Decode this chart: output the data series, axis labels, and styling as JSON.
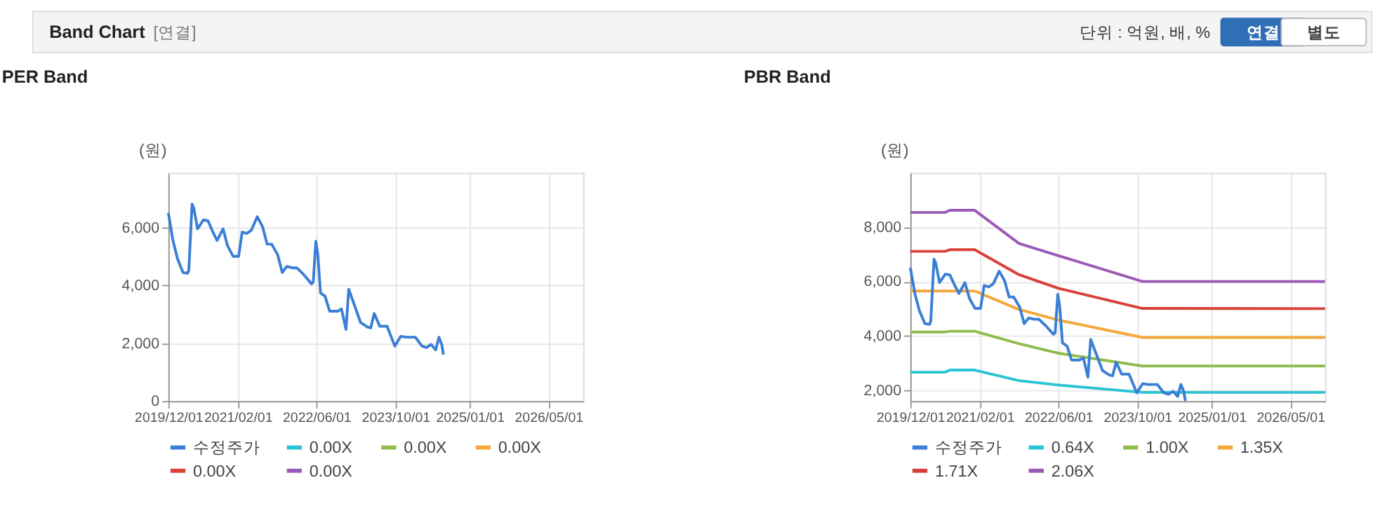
{
  "chart_data": [
    {
      "type": "line",
      "title": "PER Band",
      "ylabel": "(원)",
      "annotations": [
        "Band Chart",
        "[연결]",
        "단위 : 억원, 배, %",
        "연결",
        "별도"
      ],
      "xlim": [
        "2019-12-01",
        "2026-12-01"
      ],
      "xticks": [
        {
          "value": "2019-12-01",
          "label": "2019/12/01"
        },
        {
          "value": "2021-02-01",
          "label": "2021/02/01"
        },
        {
          "value": "2022-06-01",
          "label": "2022/06/01"
        },
        {
          "value": "2023-10-01",
          "label": "2023/10/01"
        },
        {
          "value": "2025-01-01",
          "label": "2025/01/01"
        },
        {
          "value": "2026-05-01",
          "label": "2026/05/01"
        }
      ],
      "ylim": [
        0,
        7900
      ],
      "yticks": [
        0,
        {
          "value": 2000,
          "label": "2,000"
        },
        {
          "value": 4000,
          "label": "4,000"
        },
        {
          "value": 6000,
          "label": "6,000"
        }
      ],
      "grid": true,
      "legend": "bottom",
      "marker": "none",
      "series": [
        {
          "name": "수정주가",
          "color": "#3a7fd5",
          "x": [
            "2019-12-01",
            "2019-12-29",
            "2020-01-26",
            "2020-02-29",
            "2020-03-28",
            "2020-04-05",
            "2020-04-25",
            "2020-05-06",
            "2020-05-29",
            "2020-07-04",
            "2020-08-01",
            "2020-08-29",
            "2020-09-26",
            "2020-11-02",
            "2020-11-30",
            "2021-01-03",
            "2021-02-06",
            "2021-02-28",
            "2021-03-28",
            "2021-04-25",
            "2021-06-01",
            "2021-07-04",
            "2021-08-01",
            "2021-08-29",
            "2021-10-05",
            "2021-11-02",
            "2021-11-30",
            "2022-01-03",
            "2022-01-31",
            "2022-03-14",
            "2022-05-01",
            "2022-05-12",
            "2022-05-28",
            "2022-06-09",
            "2022-06-26",
            "2022-07-24",
            "2022-08-21",
            "2022-10-11",
            "2022-11-02",
            "2022-11-30",
            "2022-12-17",
            "2023-01-17",
            "2023-02-28",
            "2023-04-11",
            "2023-05-01",
            "2023-05-23",
            "2023-06-26",
            "2023-08-10",
            "2023-09-27",
            "2023-11-02",
            "2023-12-06",
            "2024-01-31",
            "2024-03-13",
            "2024-04-10",
            "2024-05-08",
            "2024-06-05",
            "2024-06-25",
            "2024-07-12",
            "2024-07-23"
          ],
          "values": [
            6510,
            5560,
            4930,
            4450,
            4420,
            4530,
            6820,
            6670,
            5960,
            6270,
            6240,
            5880,
            5560,
            5960,
            5370,
            5010,
            5010,
            5850,
            5800,
            5910,
            6380,
            6030,
            5430,
            5430,
            5060,
            4450,
            4660,
            4610,
            4610,
            4380,
            4060,
            4110,
            5530,
            5090,
            3740,
            3630,
            3110,
            3110,
            3190,
            2480,
            3870,
            3380,
            2720,
            2560,
            2530,
            3030,
            2590,
            2590,
            1900,
            2240,
            2210,
            2210,
            1900,
            1850,
            1960,
            1770,
            2210,
            1960,
            1610
          ]
        },
        {
          "name": "0.00X",
          "color": "#29c4d4",
          "values": [
            null
          ]
        },
        {
          "name": "0.00X",
          "color": "#8fbc4f",
          "values": [
            null
          ]
        },
        {
          "name": "0.00X",
          "color": "#f5a83a",
          "values": [
            null
          ]
        },
        {
          "name": "0.00X",
          "color": "#d9403a",
          "values": [
            null
          ]
        },
        {
          "name": "0.00X",
          "color": "#9b59b6",
          "values": [
            null
          ]
        }
      ]
    },
    {
      "type": "line",
      "title": "PBR Band",
      "ylabel": "(원)",
      "xlim": [
        "2019-12-01",
        "2026-12-01"
      ],
      "xticks": [
        {
          "value": "2019-12-01",
          "label": "2019/12/01"
        },
        {
          "value": "2021-02-01",
          "label": "2021/02/01"
        },
        {
          "value": "2022-06-01",
          "label": "2022/06/01"
        },
        {
          "value": "2023-10-01",
          "label": "2023/10/01"
        },
        {
          "value": "2025-01-01",
          "label": "2025/01/01"
        },
        {
          "value": "2026-05-01",
          "label": "2026/05/01"
        }
      ],
      "ylim": [
        1600,
        10000
      ],
      "yticks": [
        {
          "value": 2000,
          "label": "2,000"
        },
        {
          "value": 4000,
          "label": "4,000"
        },
        {
          "value": 6000,
          "label": "6,000"
        },
        {
          "value": 8000,
          "label": "8,000"
        }
      ],
      "grid": true,
      "legend": "bottom",
      "marker": "none",
      "series": [
        {
          "name": "수정주가",
          "color": "#3a7fd5",
          "x": [
            "2019-12-01",
            "2019-12-29",
            "2020-01-26",
            "2020-02-29",
            "2020-03-28",
            "2020-04-05",
            "2020-04-25",
            "2020-05-06",
            "2020-05-29",
            "2020-07-04",
            "2020-08-01",
            "2020-08-29",
            "2020-09-26",
            "2020-11-02",
            "2020-11-30",
            "2021-01-03",
            "2021-02-06",
            "2021-02-28",
            "2021-03-28",
            "2021-04-25",
            "2021-06-01",
            "2021-07-04",
            "2021-08-01",
            "2021-08-29",
            "2021-10-05",
            "2021-11-02",
            "2021-11-30",
            "2022-01-03",
            "2022-01-31",
            "2022-03-14",
            "2022-05-01",
            "2022-05-12",
            "2022-05-28",
            "2022-06-09",
            "2022-06-26",
            "2022-07-24",
            "2022-08-21",
            "2022-10-11",
            "2022-11-02",
            "2022-11-30",
            "2022-12-17",
            "2023-01-17",
            "2023-02-28",
            "2023-04-11",
            "2023-05-01",
            "2023-05-23",
            "2023-06-26",
            "2023-08-10",
            "2023-09-27",
            "2023-11-02",
            "2023-12-06",
            "2024-01-31",
            "2024-03-13",
            "2024-04-10",
            "2024-05-08",
            "2024-06-05",
            "2024-06-25",
            "2024-07-12",
            "2024-07-23"
          ],
          "values": [
            6510,
            5560,
            4930,
            4450,
            4420,
            4530,
            6820,
            6670,
            5960,
            6270,
            6240,
            5880,
            5560,
            5960,
            5370,
            5010,
            5010,
            5850,
            5800,
            5910,
            6380,
            6030,
            5430,
            5430,
            5060,
            4450,
            4660,
            4610,
            4610,
            4380,
            4060,
            4110,
            5530,
            5090,
            3740,
            3630,
            3110,
            3110,
            3190,
            2480,
            3870,
            3380,
            2720,
            2560,
            2530,
            3030,
            2590,
            2590,
            1900,
            2240,
            2210,
            2210,
            1900,
            1850,
            1960,
            1770,
            2210,
            1960,
            1610
          ]
        },
        {
          "name": "0.64X",
          "color": "#29c4d4",
          "x": [
            "2019-12-01",
            "2020-07-01",
            "2020-08-01",
            "2021-01-01",
            "2021-10-01",
            "2022-06-01",
            "2023-11-01",
            "2026-12-01"
          ],
          "values": [
            2660,
            2660,
            2740,
            2740,
            2350,
            2190,
            1920,
            1920
          ]
        },
        {
          "name": "1.00X",
          "color": "#8fbc4f",
          "x": [
            "2019-12-01",
            "2020-07-01",
            "2020-08-01",
            "2021-01-01",
            "2021-10-01",
            "2022-06-01",
            "2023-11-01",
            "2026-12-01"
          ],
          "values": [
            4140,
            4140,
            4170,
            4170,
            3710,
            3360,
            2890,
            2890
          ]
        },
        {
          "name": "1.35X",
          "color": "#f5a83a",
          "x": [
            "2019-12-01",
            "2020-07-01",
            "2020-08-01",
            "2021-01-01",
            "2021-10-01",
            "2022-06-01",
            "2023-11-01",
            "2026-12-01"
          ],
          "values": [
            5650,
            5650,
            5650,
            5650,
            4970,
            4580,
            3940,
            3940
          ]
        },
        {
          "name": "1.71X",
          "color": "#d9403a",
          "x": [
            "2019-12-01",
            "2020-07-01",
            "2020-08-01",
            "2021-01-01",
            "2021-10-01",
            "2022-06-01",
            "2023-11-01",
            "2026-12-01"
          ],
          "values": [
            7110,
            7110,
            7170,
            7170,
            6250,
            5750,
            5010,
            5000
          ]
        },
        {
          "name": "2.06X",
          "color": "#9b59b6",
          "x": [
            "2019-12-01",
            "2020-07-01",
            "2020-08-01",
            "2021-01-01",
            "2021-10-01",
            "2022-06-01",
            "2023-11-01",
            "2026-12-01"
          ],
          "values": [
            8540,
            8540,
            8620,
            8620,
            7400,
            6950,
            6000,
            6000
          ]
        }
      ]
    }
  ]
}
